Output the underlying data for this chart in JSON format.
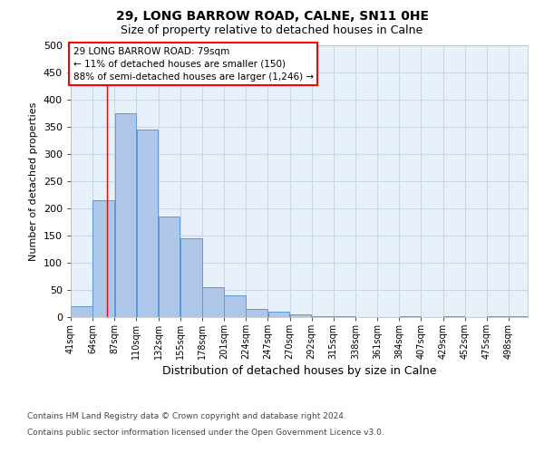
{
  "title1": "29, LONG BARROW ROAD, CALNE, SN11 0HE",
  "title2": "Size of property relative to detached houses in Calne",
  "xlabel": "Distribution of detached houses by size in Calne",
  "ylabel": "Number of detached properties",
  "bar_labels": [
    "41sqm",
    "64sqm",
    "87sqm",
    "110sqm",
    "132sqm",
    "155sqm",
    "178sqm",
    "201sqm",
    "224sqm",
    "247sqm",
    "270sqm",
    "292sqm",
    "315sqm",
    "338sqm",
    "361sqm",
    "384sqm",
    "407sqm",
    "429sqm",
    "452sqm",
    "475sqm",
    "498sqm"
  ],
  "bar_values": [
    20,
    215,
    375,
    345,
    185,
    145,
    55,
    40,
    15,
    10,
    5,
    2,
    2,
    0,
    0,
    2,
    0,
    2,
    0,
    2,
    2
  ],
  "bar_color": "#aec6e8",
  "bar_edge_color": "#5b9bd5",
  "property_sqm": 79,
  "xlim_left": 41,
  "xlim_right": 521,
  "ylim_top": 500,
  "yticks": [
    0,
    50,
    100,
    150,
    200,
    250,
    300,
    350,
    400,
    450,
    500
  ],
  "bin_width": 23,
  "annotation_line1": "29 LONG BARROW ROAD: 79sqm",
  "annotation_line2": "← 11% of detached houses are smaller (150)",
  "annotation_line3": "88% of semi-detached houses are larger (1,246) →",
  "bg_color": "#e8f0fa",
  "grid_color": "#c8d8ec",
  "footer1": "Contains HM Land Registry data © Crown copyright and database right 2024.",
  "footer2": "Contains public sector information licensed under the Open Government Licence v3.0."
}
